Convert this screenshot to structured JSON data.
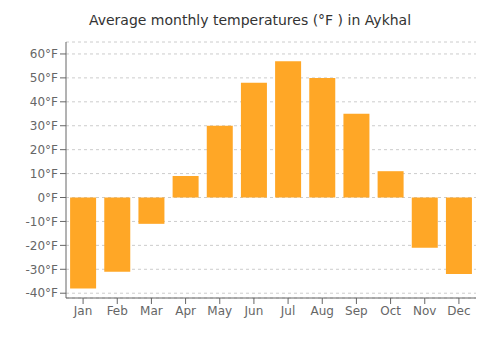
{
  "chart_data": {
    "type": "bar",
    "title": "Average monthly temperatures (°F ) in Aykhal",
    "categories": [
      "Jan",
      "Feb",
      "Mar",
      "Apr",
      "May",
      "Jun",
      "Jul",
      "Aug",
      "Sep",
      "Oct",
      "Nov",
      "Dec"
    ],
    "values": [
      -38,
      -31,
      -11,
      9,
      30,
      48,
      57,
      50,
      35,
      11,
      -21,
      -32
    ],
    "color": "#FFA726",
    "ylim": [
      -42,
      65
    ],
    "yticks": [
      {
        "value": -40,
        "label": "-40°F"
      },
      {
        "value": -30,
        "label": "-30°F"
      },
      {
        "value": -20,
        "label": "-20°F"
      },
      {
        "value": -10,
        "label": "-10°F"
      },
      {
        "value": 0,
        "label": "0°F"
      },
      {
        "value": 10,
        "label": "10°F"
      },
      {
        "value": 20,
        "label": "20°F"
      },
      {
        "value": 30,
        "label": "30°F"
      },
      {
        "value": 40,
        "label": "40°F"
      },
      {
        "value": 50,
        "label": "50°F"
      },
      {
        "value": 60,
        "label": "60°F"
      }
    ],
    "grid": true
  }
}
